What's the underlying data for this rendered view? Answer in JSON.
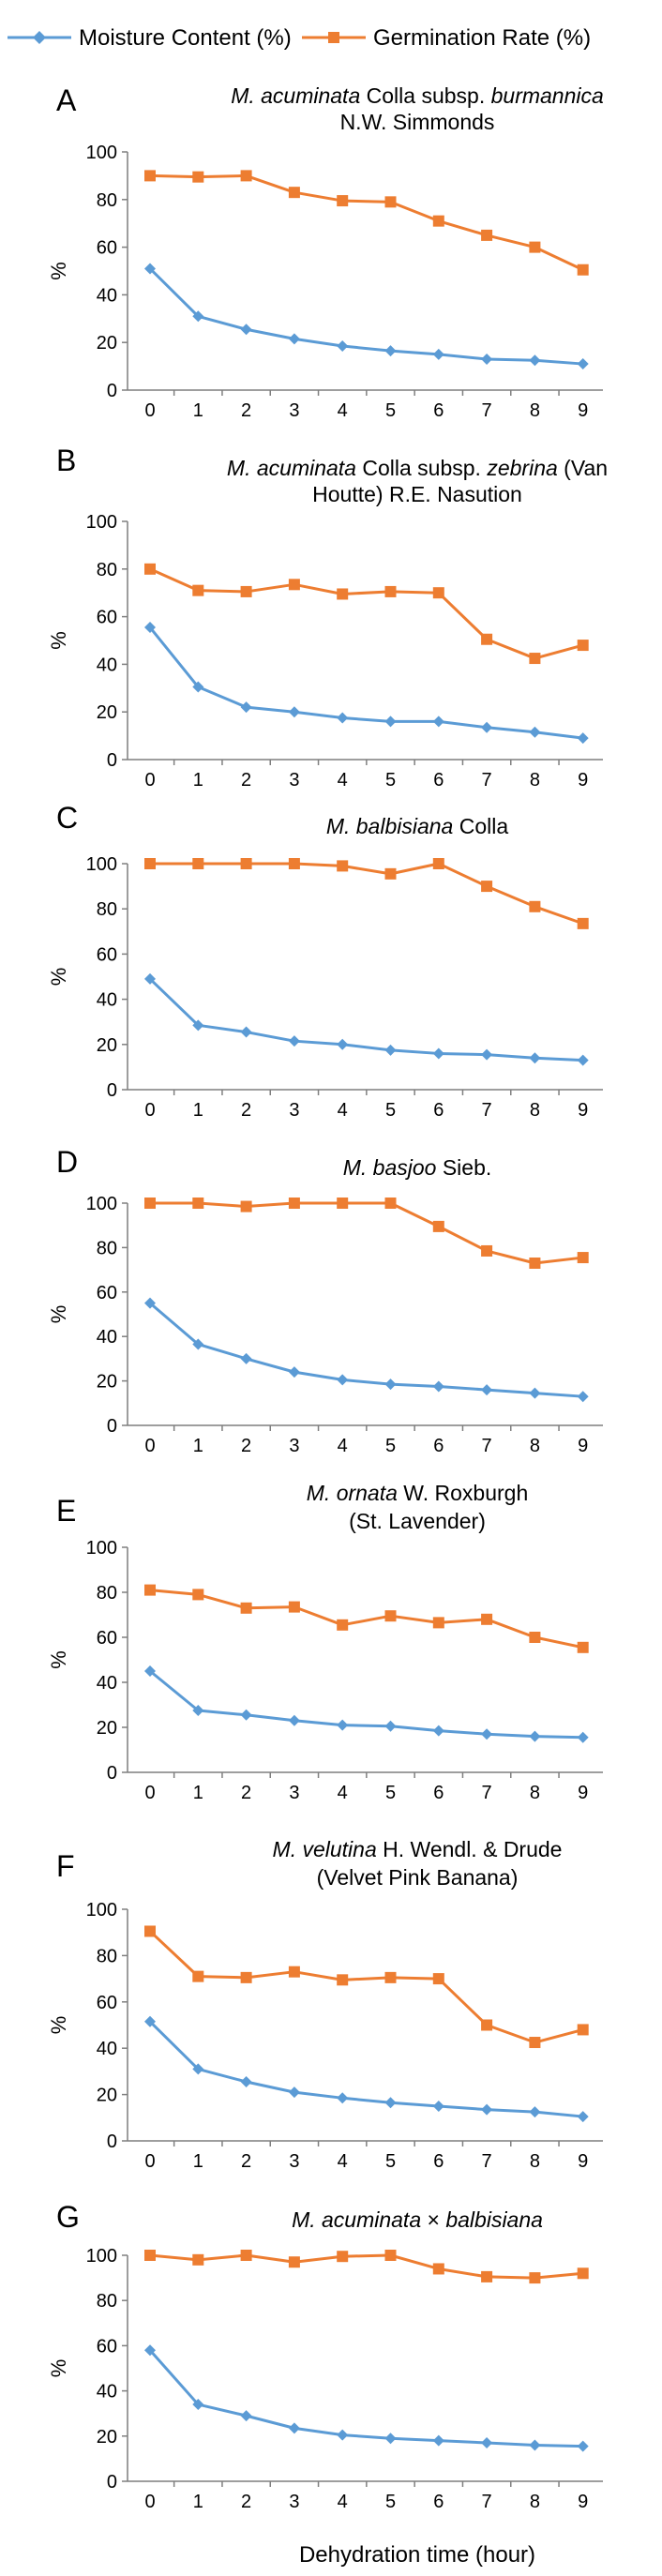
{
  "legend": {
    "moisture_label": "Moisture Content (%)",
    "germination_label": "Germination Rate (%)",
    "moisture_color": "#5B9BD5",
    "germination_color": "#ED7D31",
    "moisture_marker": "diamond",
    "germination_marker": "square",
    "placement": "top"
  },
  "xlabel": "Dehydration time (hour)",
  "chart_data": [
    {
      "type": "line",
      "panel": "A",
      "title_parts": [
        {
          "text": "M. acuminata",
          "italic": true
        },
        {
          "text": " Colla subsp. ",
          "italic": false
        },
        {
          "text": "burmannica",
          "italic": true
        }
      ],
      "title_line2": "N.W. Simmonds",
      "ylabel": "%",
      "ylim": [
        0,
        100
      ],
      "yticks": [
        0,
        20,
        40,
        60,
        80,
        100
      ],
      "x": [
        0,
        1,
        2,
        3,
        4,
        5,
        6,
        7,
        8,
        9
      ],
      "series": [
        {
          "name": "Moisture Content (%)",
          "values": [
            51,
            31,
            25.5,
            21.5,
            18.5,
            16.5,
            15,
            13,
            12.5,
            11
          ]
        },
        {
          "name": "Germination Rate (%)",
          "values": [
            90,
            89.5,
            90,
            83,
            79.5,
            79,
            71,
            65,
            60,
            50.5
          ]
        }
      ]
    },
    {
      "type": "line",
      "panel": "B",
      "title_parts": [
        {
          "text": "M. acuminata",
          "italic": true
        },
        {
          "text": " Colla subsp. ",
          "italic": false
        },
        {
          "text": "zebrina",
          "italic": true
        },
        {
          "text": " (Van",
          "italic": false
        }
      ],
      "title_line2": "Houtte) R.E. Nasution",
      "ylabel": "%",
      "ylim": [
        0,
        100
      ],
      "yticks": [
        0,
        20,
        40,
        60,
        80,
        100
      ],
      "x": [
        0,
        1,
        2,
        3,
        4,
        5,
        6,
        7,
        8,
        9
      ],
      "series": [
        {
          "name": "Moisture Content (%)",
          "values": [
            55.5,
            30.5,
            22,
            20,
            17.5,
            16,
            16,
            13.5,
            11.5,
            9
          ]
        },
        {
          "name": "Germination Rate (%)",
          "values": [
            80,
            71,
            70.5,
            73.5,
            69.5,
            70.5,
            70,
            50.5,
            42.5,
            48
          ]
        }
      ]
    },
    {
      "type": "line",
      "panel": "C",
      "title_parts": [
        {
          "text": "M. balbisiana",
          "italic": true
        },
        {
          "text": " Colla",
          "italic": false
        }
      ],
      "title_line2": "",
      "ylabel": "%",
      "ylim": [
        0,
        100
      ],
      "yticks": [
        0,
        20,
        40,
        60,
        80,
        100
      ],
      "x": [
        0,
        1,
        2,
        3,
        4,
        5,
        6,
        7,
        8,
        9
      ],
      "series": [
        {
          "name": "Moisture Content (%)",
          "values": [
            49,
            28.5,
            25.5,
            21.5,
            20,
            17.5,
            16,
            15.5,
            14,
            13
          ]
        },
        {
          "name": "Germination Rate (%)",
          "values": [
            100,
            100,
            100,
            100,
            99,
            95.5,
            100,
            90,
            81,
            73.5
          ]
        }
      ]
    },
    {
      "type": "line",
      "panel": "D",
      "title_parts": [
        {
          "text": "M. basjoo",
          "italic": true
        },
        {
          "text": " Sieb.",
          "italic": false
        }
      ],
      "title_line2": "",
      "ylabel": "%",
      "ylim": [
        0,
        100
      ],
      "yticks": [
        0,
        20,
        40,
        60,
        80,
        100
      ],
      "x": [
        0,
        1,
        2,
        3,
        4,
        5,
        6,
        7,
        8,
        9
      ],
      "series": [
        {
          "name": "Moisture Content (%)",
          "values": [
            55,
            36.5,
            30,
            24,
            20.5,
            18.5,
            17.5,
            16,
            14.5,
            13
          ]
        },
        {
          "name": "Germination Rate (%)",
          "values": [
            100,
            100,
            98.5,
            100,
            100,
            100,
            89.5,
            78.5,
            73,
            75.5
          ]
        }
      ]
    },
    {
      "type": "line",
      "panel": "E",
      "title_parts": [
        {
          "text": "M. ornata",
          "italic": true
        },
        {
          "text": " W. Roxburgh",
          "italic": false
        }
      ],
      "title_line2": "(St. Lavender)",
      "ylabel": "%",
      "ylim": [
        0,
        100
      ],
      "yticks": [
        0,
        20,
        40,
        60,
        80,
        100
      ],
      "x": [
        0,
        1,
        2,
        3,
        4,
        5,
        6,
        7,
        8,
        9
      ],
      "series": [
        {
          "name": "Moisture Content (%)",
          "values": [
            45,
            27.5,
            25.5,
            23,
            21,
            20.5,
            18.5,
            17,
            16,
            15.5
          ]
        },
        {
          "name": "Germination Rate (%)",
          "values": [
            81,
            79,
            73,
            73.5,
            65.5,
            69.5,
            66.5,
            68,
            60,
            55.5
          ]
        }
      ]
    },
    {
      "type": "line",
      "panel": "F",
      "title_parts": [
        {
          "text": "M. velutina",
          "italic": true
        },
        {
          "text": " H. Wendl. & Drude",
          "italic": false
        }
      ],
      "title_line2": "(Velvet Pink Banana)",
      "ylabel": "%",
      "ylim": [
        0,
        100
      ],
      "yticks": [
        0,
        20,
        40,
        60,
        80,
        100
      ],
      "x": [
        0,
        1,
        2,
        3,
        4,
        5,
        6,
        7,
        8,
        9
      ],
      "series": [
        {
          "name": "Moisture Content (%)",
          "values": [
            51.5,
            31,
            25.5,
            21,
            18.5,
            16.5,
            15,
            13.5,
            12.5,
            10.5
          ]
        },
        {
          "name": "Germination Rate (%)",
          "values": [
            90.5,
            71,
            70.5,
            73,
            69.5,
            70.5,
            70,
            50,
            42.5,
            48
          ]
        }
      ]
    },
    {
      "type": "line",
      "panel": "G",
      "title_parts": [
        {
          "text": "M. acuminata",
          "italic": true
        },
        {
          "text": " × ",
          "italic": false
        },
        {
          "text": "balbisiana",
          "italic": true
        }
      ],
      "title_line2": "",
      "ylabel": "%",
      "ylim": [
        0,
        100
      ],
      "yticks": [
        0,
        20,
        40,
        60,
        80,
        100
      ],
      "x": [
        0,
        1,
        2,
        3,
        4,
        5,
        6,
        7,
        8,
        9
      ],
      "series": [
        {
          "name": "Moisture Content (%)",
          "values": [
            58,
            34,
            29,
            23.5,
            20.5,
            19,
            18,
            17,
            16,
            15.5
          ]
        },
        {
          "name": "Germination Rate (%)",
          "values": [
            100,
            98,
            100,
            97,
            99.5,
            100,
            94,
            90.5,
            90,
            92
          ]
        }
      ]
    }
  ]
}
